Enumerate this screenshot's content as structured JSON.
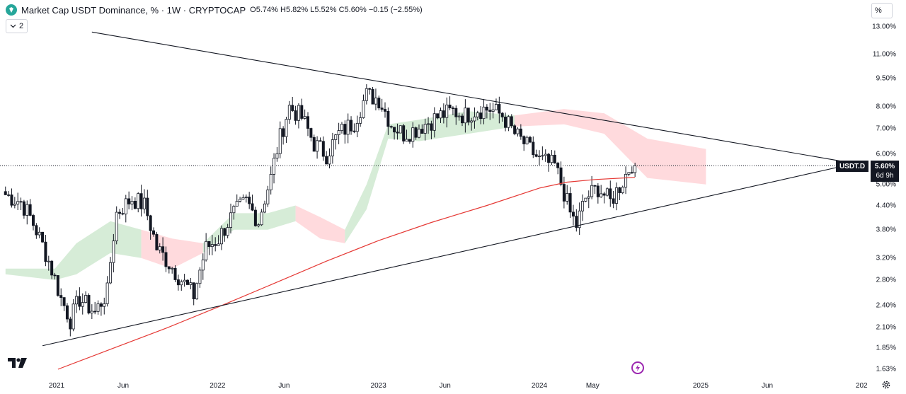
{
  "header": {
    "title": "Market Cap USDT Dominance, % · 1W · CRYPTOCAP",
    "open_label": "O",
    "open": "5.74%",
    "high_label": "H",
    "high": "5.82%",
    "low_label": "L",
    "low": "5.52%",
    "close_label": "C",
    "close": "5.60%",
    "change": "−0.15 (−2.55%)"
  },
  "layers_button": {
    "count": "2"
  },
  "scale_button": {
    "label": "%"
  },
  "symbol_tag": "USDT.D",
  "price_tag": {
    "value": "5.60%",
    "countdown": "6d 9h"
  },
  "colors": {
    "up": "#131722",
    "down": "#131722",
    "ma": "#e53935",
    "cloud_green": "#c8e6c9",
    "cloud_red": "#ffcdd2",
    "trendline": "#131722",
    "logo": "#26a69a",
    "bolt": "#9c27b0"
  },
  "icons": [
    "logo-icon",
    "chevron-down-icon",
    "tradingview-logo-icon",
    "lightning-icon",
    "gear-icon"
  ],
  "chart_data": {
    "type": "candlestick",
    "scale": "log",
    "y_ticks": [
      "13.00%",
      "11.00%",
      "9.50%",
      "8.00%",
      "7.00%",
      "6.00%",
      "5.00%",
      "4.40%",
      "3.80%",
      "3.20%",
      "2.80%",
      "2.40%",
      "2.10%",
      "1.85%",
      "1.63%"
    ],
    "y_tick_values": [
      13.0,
      11.0,
      9.5,
      8.0,
      7.0,
      6.0,
      5.0,
      4.4,
      3.8,
      3.2,
      2.8,
      2.4,
      2.1,
      1.85,
      1.63
    ],
    "x_ticks": [
      {
        "label": "2021",
        "date": "2021-01-01",
        "year": true
      },
      {
        "label": "Jun",
        "date": "2021-06-01",
        "year": false
      },
      {
        "label": "2022",
        "date": "2022-01-01",
        "year": true
      },
      {
        "label": "Jun",
        "date": "2022-06-01",
        "year": false
      },
      {
        "label": "2023",
        "date": "2023-01-01",
        "year": true
      },
      {
        "label": "Jun",
        "date": "2023-06-01",
        "year": false
      },
      {
        "label": "2024",
        "date": "2024-01-01",
        "year": true
      },
      {
        "label": "May",
        "date": "2024-05-01",
        "year": false
      },
      {
        "label": "2025",
        "date": "2025-01-01",
        "year": true
      },
      {
        "label": "Jun",
        "date": "2025-06-01",
        "year": false
      },
      {
        "label": "202",
        "date": "2026-01-01",
        "year": true
      }
    ],
    "last_close": 5.6,
    "waypoints": [
      [
        "2020-09-07",
        4.7
      ],
      [
        "2020-10-12",
        4.5
      ],
      [
        "2020-11-02",
        4.1
      ],
      [
        "2020-12-07",
        3.3
      ],
      [
        "2021-01-11",
        2.5
      ],
      [
        "2021-02-01",
        2.2
      ],
      [
        "2021-02-22",
        2.5
      ],
      [
        "2021-03-29",
        2.3
      ],
      [
        "2021-04-26",
        2.6
      ],
      [
        "2021-05-17",
        4.2
      ],
      [
        "2021-06-21",
        4.6
      ],
      [
        "2021-07-19",
        4.4
      ],
      [
        "2021-08-16",
        3.4
      ],
      [
        "2021-09-13",
        3.1
      ],
      [
        "2021-10-11",
        2.8
      ],
      [
        "2021-11-08",
        2.55
      ],
      [
        "2021-12-06",
        3.4
      ],
      [
        "2022-01-03",
        3.6
      ],
      [
        "2022-02-07",
        4.2
      ],
      [
        "2022-03-07",
        4.5
      ],
      [
        "2022-04-04",
        4.0
      ],
      [
        "2022-05-02",
        5.2
      ],
      [
        "2022-05-16",
        6.2
      ],
      [
        "2022-06-13",
        8.0
      ],
      [
        "2022-07-11",
        7.5
      ],
      [
        "2022-08-08",
        6.4
      ],
      [
        "2022-09-05",
        6.0
      ],
      [
        "2022-10-03",
        6.8
      ],
      [
        "2022-11-07",
        7.3
      ],
      [
        "2022-12-05",
        8.6
      ],
      [
        "2023-01-02",
        8.4
      ],
      [
        "2023-01-30",
        7.2
      ],
      [
        "2023-02-27",
        6.8
      ],
      [
        "2023-03-27",
        7.0
      ],
      [
        "2023-04-24",
        7.3
      ],
      [
        "2023-05-22",
        7.6
      ],
      [
        "2023-06-19",
        7.8
      ],
      [
        "2023-07-17",
        7.6
      ],
      [
        "2023-08-14",
        7.9
      ],
      [
        "2023-09-11",
        7.9
      ],
      [
        "2023-10-09",
        7.6
      ],
      [
        "2023-11-06",
        6.8
      ],
      [
        "2023-12-04",
        6.3
      ],
      [
        "2024-01-01",
        5.8
      ],
      [
        "2024-02-05",
        5.6
      ],
      [
        "2024-03-11",
        4.2
      ],
      [
        "2024-03-25",
        3.9
      ],
      [
        "2024-04-15",
        4.6
      ],
      [
        "2024-05-13",
        4.9
      ],
      [
        "2024-06-10",
        4.5
      ],
      [
        "2024-07-08",
        5.1
      ],
      [
        "2024-07-29",
        5.7
      ],
      [
        "2024-08-05",
        5.6
      ]
    ],
    "ma_series": [
      [
        "2021-01-04",
        1.63
      ],
      [
        "2021-05-03",
        1.84
      ],
      [
        "2021-09-06",
        2.09
      ],
      [
        "2022-01-03",
        2.38
      ],
      [
        "2022-05-02",
        2.72
      ],
      [
        "2022-09-05",
        3.14
      ],
      [
        "2023-01-02",
        3.56
      ],
      [
        "2023-05-01",
        3.97
      ],
      [
        "2023-09-04",
        4.4
      ],
      [
        "2024-01-01",
        4.89
      ],
      [
        "2024-03-04",
        5.07
      ],
      [
        "2024-05-06",
        5.15
      ],
      [
        "2024-08-05",
        5.22
      ]
    ],
    "trendlines": [
      {
        "name": "upper",
        "from": [
          "2021-03-22",
          12.6
        ],
        "to": [
          "2025-12-08",
          5.7
        ]
      },
      {
        "name": "lower",
        "from": [
          "2020-11-30",
          1.88
        ],
        "to": [
          "2025-12-08",
          5.65
        ]
      }
    ],
    "cloud_segments": [
      {
        "color": "green",
        "points": [
          [
            "2020-09-07",
            2.9,
            3.0
          ],
          [
            "2020-12-28",
            2.8,
            3.0
          ],
          [
            "2021-02-15",
            2.9,
            3.5
          ],
          [
            "2021-05-03",
            3.3,
            4.0
          ],
          [
            "2021-07-12",
            3.2,
            3.8
          ]
        ]
      },
      {
        "color": "red",
        "points": [
          [
            "2021-07-12",
            3.2,
            3.8
          ],
          [
            "2021-09-20",
            3.0,
            3.6
          ],
          [
            "2021-11-29",
            3.3,
            3.5
          ]
        ]
      },
      {
        "color": "green",
        "points": [
          [
            "2021-11-29",
            3.3,
            3.5
          ],
          [
            "2022-02-07",
            3.8,
            4.2
          ],
          [
            "2022-04-25",
            3.8,
            4.2
          ],
          [
            "2022-06-27",
            4.0,
            4.4
          ]
        ]
      },
      {
        "color": "red",
        "points": [
          [
            "2022-06-27",
            4.0,
            4.4
          ],
          [
            "2022-08-22",
            3.6,
            4.1
          ],
          [
            "2022-10-17",
            3.5,
            3.8
          ]
        ]
      },
      {
        "color": "green",
        "points": [
          [
            "2022-10-17",
            3.5,
            3.8
          ],
          [
            "2022-12-05",
            4.3,
            5.0
          ],
          [
            "2023-01-23",
            6.6,
            7.2
          ],
          [
            "2023-04-03",
            6.5,
            7.4
          ],
          [
            "2023-07-24",
            6.8,
            7.8
          ],
          [
            "2023-11-06",
            7.1,
            7.6
          ]
        ]
      },
      {
        "color": "red",
        "points": [
          [
            "2023-11-06",
            7.1,
            7.6
          ],
          [
            "2024-02-26",
            7.2,
            7.9
          ],
          [
            "2024-05-27",
            6.8,
            7.7
          ],
          [
            "2024-09-02",
            5.2,
            6.6
          ],
          [
            "2025-01-13",
            5.0,
            6.2
          ]
        ]
      }
    ]
  }
}
